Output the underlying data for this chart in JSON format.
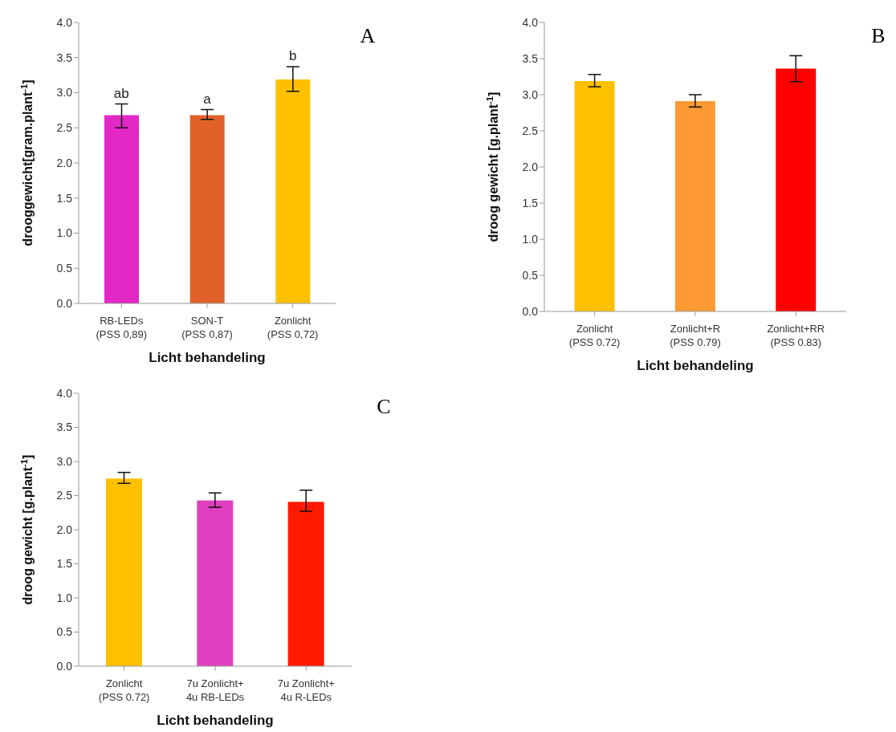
{
  "chart_data": [
    {
      "type": "bar",
      "categories": [
        "RB-LEDs\n(PSS 0,89)",
        "SON-T\n(PSS 0,87)",
        "Zonlicht\n(PSS 0,72)"
      ],
      "values": [
        2.68,
        2.68,
        3.19
      ],
      "colors": [
        "#e328c6",
        "#e0622a",
        "#ffc000"
      ],
      "errors": [
        [
          2.5,
          2.84
        ],
        [
          2.62,
          2.76
        ],
        [
          3.02,
          3.37
        ]
      ],
      "xlabel": "Licht behandeling",
      "ylabel": "drooggewicht[gram.plant$^{-1}$]",
      "ylim": [
        0,
        4
      ],
      "yticks": [
        {
          "value": 0,
          "label": "0.0"
        },
        {
          "value": 0.5,
          "label": "0.5"
        },
        {
          "value": 1,
          "label": "1.0"
        },
        {
          "value": 1.5,
          "label": "1.5"
        },
        {
          "value": 2,
          "label": "2.0"
        },
        {
          "value": 2.5,
          "label": "2.5"
        },
        {
          "value": 3,
          "label": "3.0"
        },
        {
          "value": 3.5,
          "label": "3.5"
        },
        {
          "value": 4,
          "label": "4.0"
        }
      ],
      "grid": false,
      "legend": false,
      "annotations": [
        "A",
        {
          "text": "ab",
          "x": "RB-LEDs\n(PSS 0,89)",
          "y": 2.84
        },
        {
          "text": "a",
          "x": "SON-T\n(PSS 0,87)",
          "y": 2.76
        },
        {
          "text": "b",
          "x": "Zonlicht\n(PSS 0,72)",
          "y": 3.37
        }
      ]
    },
    {
      "type": "bar",
      "categories": [
        "Zonlicht\n(PSS 0.72)",
        "Zonlicht+R\n(PSS 0.79)",
        "Zonlicht+RR\n(PSS 0.83)"
      ],
      "values": [
        3.19,
        2.91,
        3.36
      ],
      "colors": [
        "#ffc000",
        "#ff9933",
        "#ff0000"
      ],
      "errors": [
        [
          3.11,
          3.28
        ],
        [
          2.83,
          3.0
        ],
        [
          3.18,
          3.54
        ]
      ],
      "xlabel": "Licht behandeling",
      "ylabel": "droog gewicht [g.plant$^{-1}$]",
      "ylim": [
        0,
        4
      ],
      "yticks": [
        {
          "value": 0,
          "label": "0.0"
        },
        {
          "value": 0.5,
          "label": "0.5"
        },
        {
          "value": 1,
          "label": "1.0"
        },
        {
          "value": 1.5,
          "label": "1.5"
        },
        {
          "value": 2,
          "label": "2.0"
        },
        {
          "value": 2.5,
          "label": "2.5"
        },
        {
          "value": 3,
          "label": "3.0"
        },
        {
          "value": 3.5,
          "label": "3.5"
        },
        {
          "value": 4,
          "label": "4.0"
        }
      ],
      "grid": false,
      "legend": false,
      "annotations": [
        "B"
      ]
    },
    {
      "type": "bar",
      "categories": [
        "Zonlicht\n(PSS 0.72)",
        "7u Zonlicht+\n4u RB-LEDs",
        "7u Zonlicht+\n4u R-LEDs"
      ],
      "values": [
        2.75,
        2.43,
        2.41
      ],
      "colors": [
        "#ffc000",
        "#e040c0",
        "#ff1a00"
      ],
      "errors": [
        [
          2.68,
          2.84
        ],
        [
          2.33,
          2.54
        ],
        [
          2.27,
          2.58
        ]
      ],
      "xlabel": "Licht behandeling",
      "ylabel": "droog gewicht [g.plant$^{-1}$]",
      "ylim": [
        0,
        4
      ],
      "yticks": [
        {
          "value": 0,
          "label": "0.0"
        },
        {
          "value": 0.5,
          "label": "0.5"
        },
        {
          "value": 1,
          "label": "1.0"
        },
        {
          "value": 1.5,
          "label": "1.5"
        },
        {
          "value": 2,
          "label": "2.0"
        },
        {
          "value": 2.5,
          "label": "2.5"
        },
        {
          "value": 3,
          "label": "3.0"
        },
        {
          "value": 3.5,
          "label": "3.5"
        },
        {
          "value": 4,
          "label": "4.0"
        }
      ],
      "grid": false,
      "legend": false,
      "annotations": [
        "C"
      ]
    }
  ]
}
